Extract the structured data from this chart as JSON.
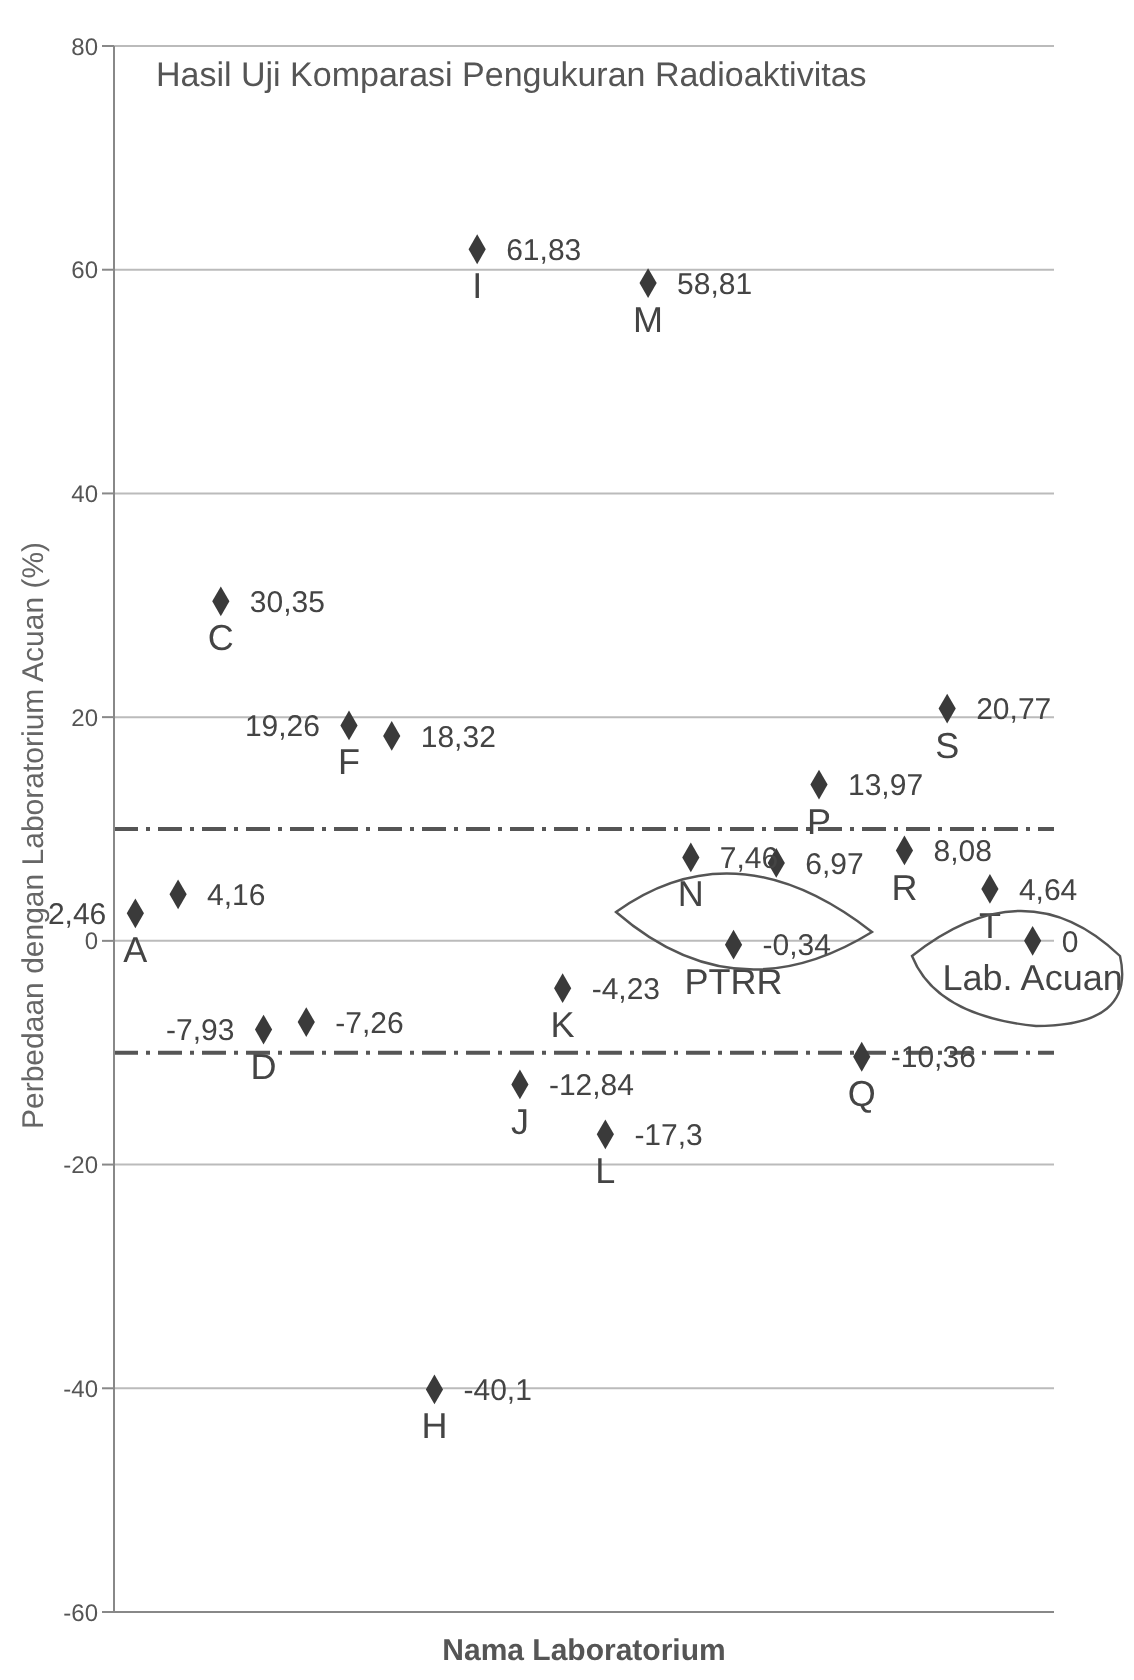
{
  "chart_data": {
    "type": "scatter",
    "title": "Hasil Uji Komparasi Pengukuran Radioaktivitas",
    "xlabel": "Nama Laboratorium",
    "ylabel": "Perbedaan dengan Laboratorium Acuan (%)",
    "categories": [
      "A",
      null,
      "C",
      "D",
      null,
      "F",
      null,
      "H",
      "I",
      "J",
      "K",
      "L",
      "M",
      "N",
      "PTRR",
      null,
      "P",
      "Q",
      "R",
      "S",
      "T",
      "Lab. Acuan"
    ],
    "series": [
      {
        "color": "#3a3a3a",
        "values": [
          2.46,
          4.16,
          30.35,
          -7.93,
          -7.26,
          19.26,
          18.32,
          -40.1,
          61.83,
          -12.84,
          -4.23,
          -17.3,
          58.81,
          7.46,
          -0.34,
          6.97,
          13.97,
          -10.36,
          8.08,
          20.77,
          4.64,
          0
        ],
        "value_labels": [
          "2,46",
          "4,16",
          "30,35",
          "-7,93",
          "-7,26",
          "19,26",
          "18,32",
          "-40,1",
          "61,83",
          "-12,84",
          "-4,23",
          "-17,3",
          "58,81",
          "7,46",
          "-0,34",
          "6,97",
          "13,97",
          "-10,36",
          "8,08",
          "20,77",
          "4,64",
          "0"
        ]
      }
    ],
    "ylim": [
      -60,
      80
    ],
    "yticks": [
      -60,
      -40,
      -20,
      0,
      20,
      40,
      60,
      80
    ],
    "grid": "y",
    "tick_labels": "y",
    "marker": "diamond",
    "ref_lines": [
      {
        "axis": "y",
        "value": 10,
        "line_style": "dashdot"
      },
      {
        "axis": "y",
        "value": -10,
        "line_style": "dashdot"
      }
    ]
  }
}
